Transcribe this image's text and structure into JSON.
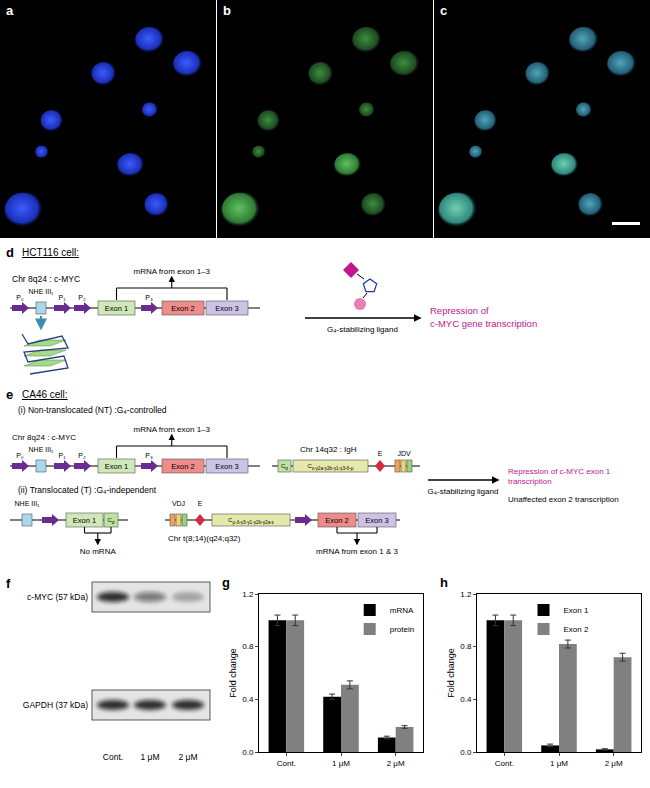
{
  "panels": {
    "a": {
      "label": "a"
    },
    "b": {
      "label": "b"
    },
    "c": {
      "label": "c"
    },
    "d": {
      "label": "d",
      "cell": "HCT116 cell:",
      "chromosome": "Chr 8q24 : c-MYC",
      "promoters": [
        "P₀",
        "P₁",
        "P₂",
        "P₃"
      ],
      "nhe": "NHE III₁",
      "exons": [
        "Exon 1",
        "Exon 2",
        "Exon 3"
      ],
      "mrna": "mRNA from exon 1–3",
      "arrow_label": "G₄-stabilizing ligand",
      "result": [
        "Repression of",
        "c-MYC gene transcription"
      ]
    },
    "e": {
      "label": "e",
      "cell": "CA46 cell:",
      "nt": {
        "title": "(i) Non-translocated (NT) :G₄-controlled",
        "chromosome": "Chr 8q24 : c-MYC",
        "promoters": [
          "P₀",
          "P₁",
          "P₂",
          "P₃"
        ],
        "nhe": "NHE III₁",
        "exons": [
          "Exon 1",
          "Exon 2",
          "Exon 3"
        ],
        "mrna": "mRNA from exon 1–3"
      },
      "igh": {
        "chromosome": "Chr 14q32 : IgH",
        "c_alpha": {
          "t": "C",
          "sub": "α"
        },
        "c_genes": {
          "t": "C",
          "sub": "ε-γ2a-γ2b-γ1-γ3-δ-μ"
        },
        "enhancer": "E",
        "jdv": "JDV"
      },
      "t": {
        "title": "(ii) Translocated (T) :G₄-independent",
        "nhe": "NHE III₁",
        "exon": "Exon 1",
        "c_alpha": {
          "t": "C",
          "sub": "α"
        },
        "no_mrna": "No mRNA",
        "vdj": "VDJ",
        "enhancer": "E",
        "c_genes": {
          "t": "C",
          "sub": "μ-δ-γ3-γ1-γ2b-γ2a-ε"
        },
        "exons": [
          "Exon 2",
          "Exon 3"
        ],
        "chromosome": "Chr t(8;14)(q24;q32)",
        "mrna": "mRNA from exon 1 & 3"
      },
      "arrow_label": "G₄-stabilizing ligand",
      "result": [
        "Repression of c-MYC exon 1",
        "transcription"
      ],
      "unaffected": "Unaffected exon 2 transcription"
    },
    "f": {
      "label": "f",
      "bands": [
        "c-MYC (57 kDa)",
        "GAPDH (37 kDa)"
      ],
      "lanes": [
        "Cont.",
        "1 μM",
        "2 μM"
      ]
    },
    "g": {
      "label": "g"
    },
    "h": {
      "label": "h"
    }
  },
  "chart_data": [
    {
      "type": "bar",
      "categories": [
        "Cont.",
        "1 μM",
        "2 μM"
      ],
      "y_label": "Fold change",
      "ylim": [
        0,
        1.2
      ],
      "yticks": [
        {
          "value": 0,
          "label": "0.0"
        },
        0.4,
        0.8,
        1.2
      ],
      "legend": "top right",
      "series": [
        {
          "name": "mRNA",
          "color": "#000000",
          "values": [
            1.0,
            0.42,
            0.11
          ],
          "errors": [
            0.04,
            0.02,
            0.01
          ]
        },
        {
          "name": "protein",
          "color": "#808080",
          "values": [
            1.0,
            0.51,
            0.19
          ],
          "errors": [
            0.04,
            0.03,
            0.01
          ]
        }
      ]
    },
    {
      "type": "bar",
      "categories": [
        "Cont.",
        "1 μM",
        "2 μM"
      ],
      "y_label": "Fold change",
      "ylim": [
        0,
        1.2
      ],
      "yticks": [
        {
          "value": 0,
          "label": "0.0"
        },
        0.4,
        0.8,
        1.2
      ],
      "legend": "top",
      "series": [
        {
          "name": "Exon 1",
          "color": "#000000",
          "values": [
            1.0,
            0.05,
            0.02
          ],
          "errors": [
            0.04,
            0.01,
            0.005
          ]
        },
        {
          "name": "Exon 2",
          "color": "#808080",
          "values": [
            1.0,
            0.82,
            0.72
          ],
          "errors": [
            0.04,
            0.03,
            0.03
          ]
        }
      ]
    }
  ]
}
